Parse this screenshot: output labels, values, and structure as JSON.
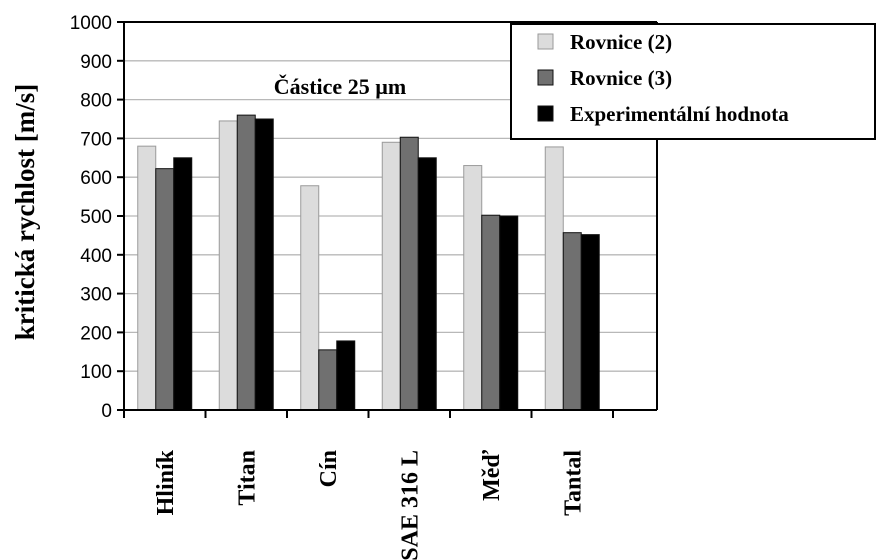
{
  "chart_data": {
    "type": "bar",
    "title": "",
    "annotation": "Částice 25 µm",
    "xlabel": "",
    "ylabel": "kritická rychlost [m/s]",
    "ylim": [
      0,
      1000
    ],
    "yticks": [
      0,
      100,
      200,
      300,
      400,
      500,
      600,
      700,
      800,
      900,
      1000
    ],
    "grid": true,
    "legend_position": "top-right",
    "categories": [
      "Hliník",
      "Titan",
      "Cín",
      "SAE 316 L",
      "Měď",
      "Tantal"
    ],
    "series": [
      {
        "name": "Rovnice (2)",
        "color": "#dcdcdc",
        "values": [
          680,
          745,
          578,
          690,
          630,
          678
        ]
      },
      {
        "name": "Rovnice (3)",
        "color": "#707070",
        "values": [
          622,
          760,
          155,
          703,
          502,
          457
        ]
      },
      {
        "name": "Experimentální hodnota",
        "color": "#000000",
        "values": [
          650,
          750,
          178,
          650,
          500,
          452
        ]
      }
    ]
  }
}
